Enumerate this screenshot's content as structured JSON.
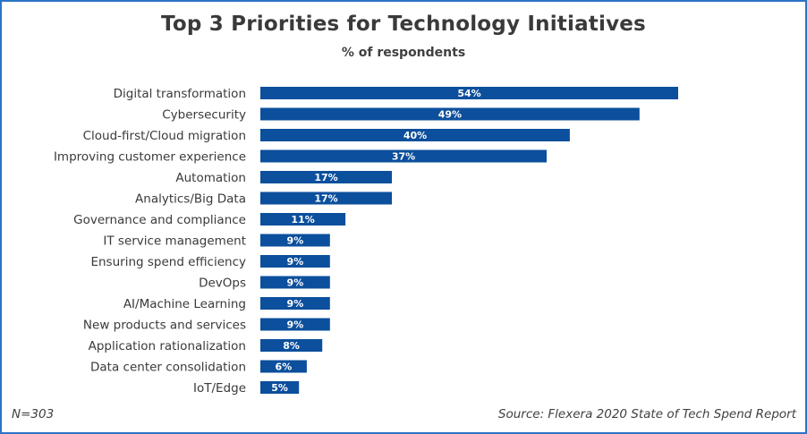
{
  "chart_data": {
    "type": "bar",
    "orientation": "horizontal",
    "title": "Top 3 Priorities for Technology Initiatives",
    "subtitle": "% of respondents",
    "categories": [
      "Digital transformation",
      "Cybersecurity",
      "Cloud-first/Cloud migration",
      "Improving customer experience",
      "Automation",
      "Analytics/Big Data",
      "Governance and compliance",
      "IT service management",
      "Ensuring spend efficiency",
      "DevOps",
      "AI/Machine Learning",
      "New products and services",
      "Application rationalization",
      "Data center consolidation",
      "IoT/Edge"
    ],
    "values": [
      54,
      49,
      40,
      37,
      17,
      17,
      11,
      9,
      9,
      9,
      9,
      9,
      8,
      6,
      5
    ],
    "value_labels": [
      "54%",
      "49%",
      "40%",
      "37%",
      "17%",
      "17%",
      "11%",
      "9%",
      "9%",
      "9%",
      "9%",
      "9%",
      "8%",
      "6%",
      "5%"
    ],
    "xlabel": "",
    "ylabel": "",
    "xlim": [
      0,
      54
    ],
    "grid": false,
    "bar_color": "#0c4f9c"
  },
  "footer": {
    "sample_size": "N=303",
    "source": "Source: Flexera 2020 State of Tech Spend Report"
  },
  "colors": {
    "border": "#2b74c7",
    "bar": "#0c4f9c"
  }
}
